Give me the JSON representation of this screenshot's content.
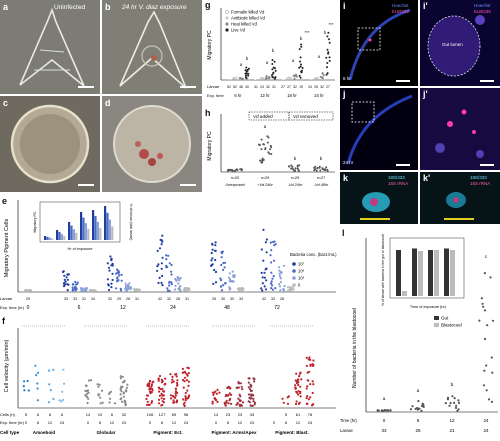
{
  "panels": {
    "a": {
      "label": "a",
      "caption": "Uninfected"
    },
    "b": {
      "label": "b",
      "caption": "24 hr V. diaz exposure"
    },
    "c": {
      "label": "c"
    },
    "d": {
      "label": "d"
    },
    "e": {
      "label": "e",
      "ylabel": "Migratory Pigment Cells",
      "inset_ylabel": "Migratory PC",
      "inset_y2label": "% of larvae (total larvae)",
      "inset_xlabel": "Hr of exposure",
      "legend_title": "Bacteria conc. (bact./mL)",
      "legend": [
        "10⁷",
        "10⁶",
        "10⁵",
        "0"
      ],
      "larvae_label": "Larvae",
      "larvae": [
        "29",
        "33",
        "33",
        "31",
        "34",
        "32",
        "29",
        "28",
        "31",
        "32",
        "32",
        "28",
        "31",
        "25",
        "30",
        "30",
        "34",
        "32",
        "33",
        "28"
      ],
      "exp_label": "Exp. time (hr)",
      "times": [
        "0",
        "6",
        "12",
        "24",
        "48",
        "72"
      ]
    },
    "f": {
      "label": "f",
      "ylabel": "Cell velocity (μm/min)",
      "cells_label": "Cells (n)",
      "exp_label": "Exp. time (hr)",
      "celltype_label": "Cell type",
      "groups": [
        {
          "name": "Amoeboid",
          "cells": [
            "5",
            "6",
            "6",
            "6"
          ],
          "times": [
            "0",
            "6",
            "12",
            "24"
          ]
        },
        {
          "name": "Globular",
          "cells": [
            "14",
            "10",
            "6",
            "32"
          ],
          "times": [
            "0",
            "6",
            "12",
            "24"
          ]
        },
        {
          "name": "Pigment: Ect.",
          "cells": [
            "106",
            "127",
            "69",
            "96"
          ],
          "times": [
            "0",
            "6",
            "12",
            "24"
          ]
        },
        {
          "name": "Pigment: Arms/Apex",
          "cells": [
            "14",
            "23",
            "23",
            "33"
          ],
          "times": [
            "0",
            "6",
            "12",
            "24"
          ]
        },
        {
          "name": "Pigment: Blast.",
          "cells": [
            "",
            "5",
            "61",
            "78"
          ],
          "times": [
            "0",
            "6",
            "12",
            "24"
          ]
        }
      ]
    },
    "g": {
      "label": "g",
      "ylabel": "Migratory PC",
      "legend": [
        "Formalin killed Vd",
        "Antibiotic killed Vd",
        "Heat killed Vd",
        "Live Vd"
      ],
      "larvae_label": "Larvae",
      "exp_label": "Exp. time",
      "larvae": [
        "52",
        "52",
        "46",
        "40",
        "31",
        "24",
        "32",
        "31",
        "27",
        "27",
        "32",
        "19",
        "24",
        "26",
        "32",
        "27"
      ],
      "times": [
        "6 hr",
        "12 hr",
        "18 hr",
        "24 hr"
      ],
      "sig": [
        "a",
        "b",
        "a",
        "b",
        "a",
        "b",
        "***",
        "a",
        "b",
        "***"
      ]
    },
    "h": {
      "label": "h",
      "ylabel": "Migratory PC",
      "added": "Vd added",
      "removed": "Vd removed",
      "groups": [
        {
          "n": "n=20",
          "name": "Unexposed"
        },
        {
          "n": "n=29",
          "name": "+Vd 24hr"
        },
        {
          "n": "n=29",
          "name": "-Vd 24hr"
        },
        {
          "n": "n=27",
          "name": "-Vd 48hr"
        }
      ],
      "sig": [
        "a",
        "b",
        "b"
      ]
    },
    "i": {
      "label": "i",
      "stain1": "Hoechst",
      "stain2": "EUB338",
      "time": "6 hr"
    },
    "i2": {
      "label": "i'",
      "stain1": "Hoechst",
      "stain2": "EUB338",
      "organ": "Gut lumen"
    },
    "j": {
      "label": "j",
      "time": "24 hr"
    },
    "j2": {
      "label": "j'"
    },
    "k": {
      "label": "k",
      "line1": "18S/333",
      "line2": "16S rRNA"
    },
    "k2": {
      "label": "k'",
      "line1": "18S/333",
      "line2": "16S rRNA"
    },
    "l": {
      "label": "l",
      "ylabel": "Number of bacteria in the blastocoel",
      "inset_ylabel": "% of larvae with bacteria in the gut or blastocoel",
      "inset_xlabel": "Time of exposure (hr)",
      "legend": [
        "Gut",
        "Blastocoel"
      ],
      "time_label": "Time (hr)",
      "larvae_label": "Larvae",
      "times": [
        "0",
        "6",
        "12",
        "24"
      ],
      "larvae": [
        "33",
        "26",
        "21",
        "24"
      ],
      "sig": [
        "a",
        "a",
        "b",
        "c"
      ]
    }
  },
  "colors": {
    "blue1": "#1f77c4",
    "blue2": "#5aa6dc",
    "red": "#c0202a",
    "grey": "#888888",
    "cyan": "#40d0ff",
    "magenta": "#e040a0"
  }
}
